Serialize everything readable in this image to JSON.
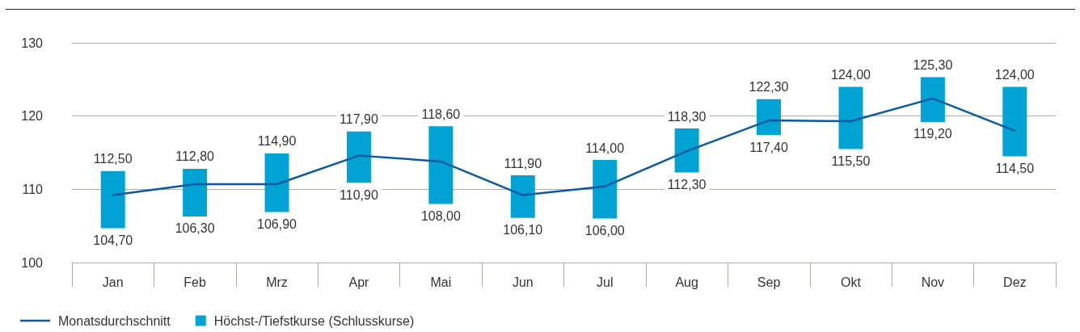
{
  "chart_data": {
    "type": "bar",
    "categories": [
      "Jan",
      "Feb",
      "Mrz",
      "Apr",
      "Mai",
      "Jun",
      "Jul",
      "Aug",
      "Sep",
      "Okt",
      "Nov",
      "Dez"
    ],
    "series": [
      {
        "name": "Monatsdurchschnitt",
        "type": "line",
        "color": "#0a5aa0",
        "values": [
          109.2,
          110.7,
          110.7,
          114.6,
          113.8,
          109.2,
          110.4,
          115.2,
          119.4,
          119.3,
          122.4,
          118.0
        ]
      },
      {
        "name": "Höchst-/Tiefstkurse (Schlusskurse)",
        "color": "#00a3d3",
        "base": [
          104.7,
          106.3,
          106.9,
          110.9,
          108.0,
          106.1,
          106.0,
          112.3,
          117.4,
          115.5,
          119.2,
          114.5
        ],
        "values": [
          7.8,
          6.5,
          8.0,
          7.0,
          10.6,
          5.8,
          8.0,
          6.0,
          4.9,
          8.5,
          6.1,
          9.5
        ]
      }
    ],
    "ylim": [
      100,
      130
    ],
    "yticks": [
      100,
      110,
      120,
      130
    ],
    "grid": "y",
    "legend": "bottom left",
    "marker": "none",
    "line_style": "solid",
    "annotations": [
      {
        "text": "112,50",
        "x": "Jan",
        "y": 112.5
      },
      {
        "text": "104,70",
        "x": "Jan",
        "y": 104.7
      },
      {
        "text": "112,80",
        "x": "Feb",
        "y": 112.8
      },
      {
        "text": "106,30",
        "x": "Feb",
        "y": 106.3
      },
      {
        "text": "114,90",
        "x": "Mrz",
        "y": 114.9
      },
      {
        "text": "106,90",
        "x": "Mrz",
        "y": 106.9
      },
      {
        "text": "117,90",
        "x": "Apr",
        "y": 117.9
      },
      {
        "text": "110,90",
        "x": "Apr",
        "y": 110.9
      },
      {
        "text": "118,60",
        "x": "Mai",
        "y": 118.6
      },
      {
        "text": "108,00",
        "x": "Mai",
        "y": 108.0
      },
      {
        "text": "111,90",
        "x": "Jun",
        "y": 111.9
      },
      {
        "text": "106,10",
        "x": "Jun",
        "y": 106.1
      },
      {
        "text": "114,00",
        "x": "Jul",
        "y": 114.0
      },
      {
        "text": "106,00",
        "x": "Jul",
        "y": 106.0
      },
      {
        "text": "118,30",
        "x": "Aug",
        "y": 118.3
      },
      {
        "text": "112,30",
        "x": "Aug",
        "y": 112.3
      },
      {
        "text": "122,30",
        "x": "Sep",
        "y": 122.3
      },
      {
        "text": "117,40",
        "x": "Sep",
        "y": 117.4
      },
      {
        "text": "124,00",
        "x": "Okt",
        "y": 124.0
      },
      {
        "text": "115,50",
        "x": "Okt",
        "y": 115.5
      },
      {
        "text": "125,30",
        "x": "Nov",
        "y": 125.3
      },
      {
        "text": "119,20",
        "x": "Nov",
        "y": 119.2
      },
      {
        "text": "124,00",
        "x": "Dez",
        "y": 124.0
      },
      {
        "text": "114,50",
        "x": "Dez",
        "y": 114.5
      }
    ]
  }
}
